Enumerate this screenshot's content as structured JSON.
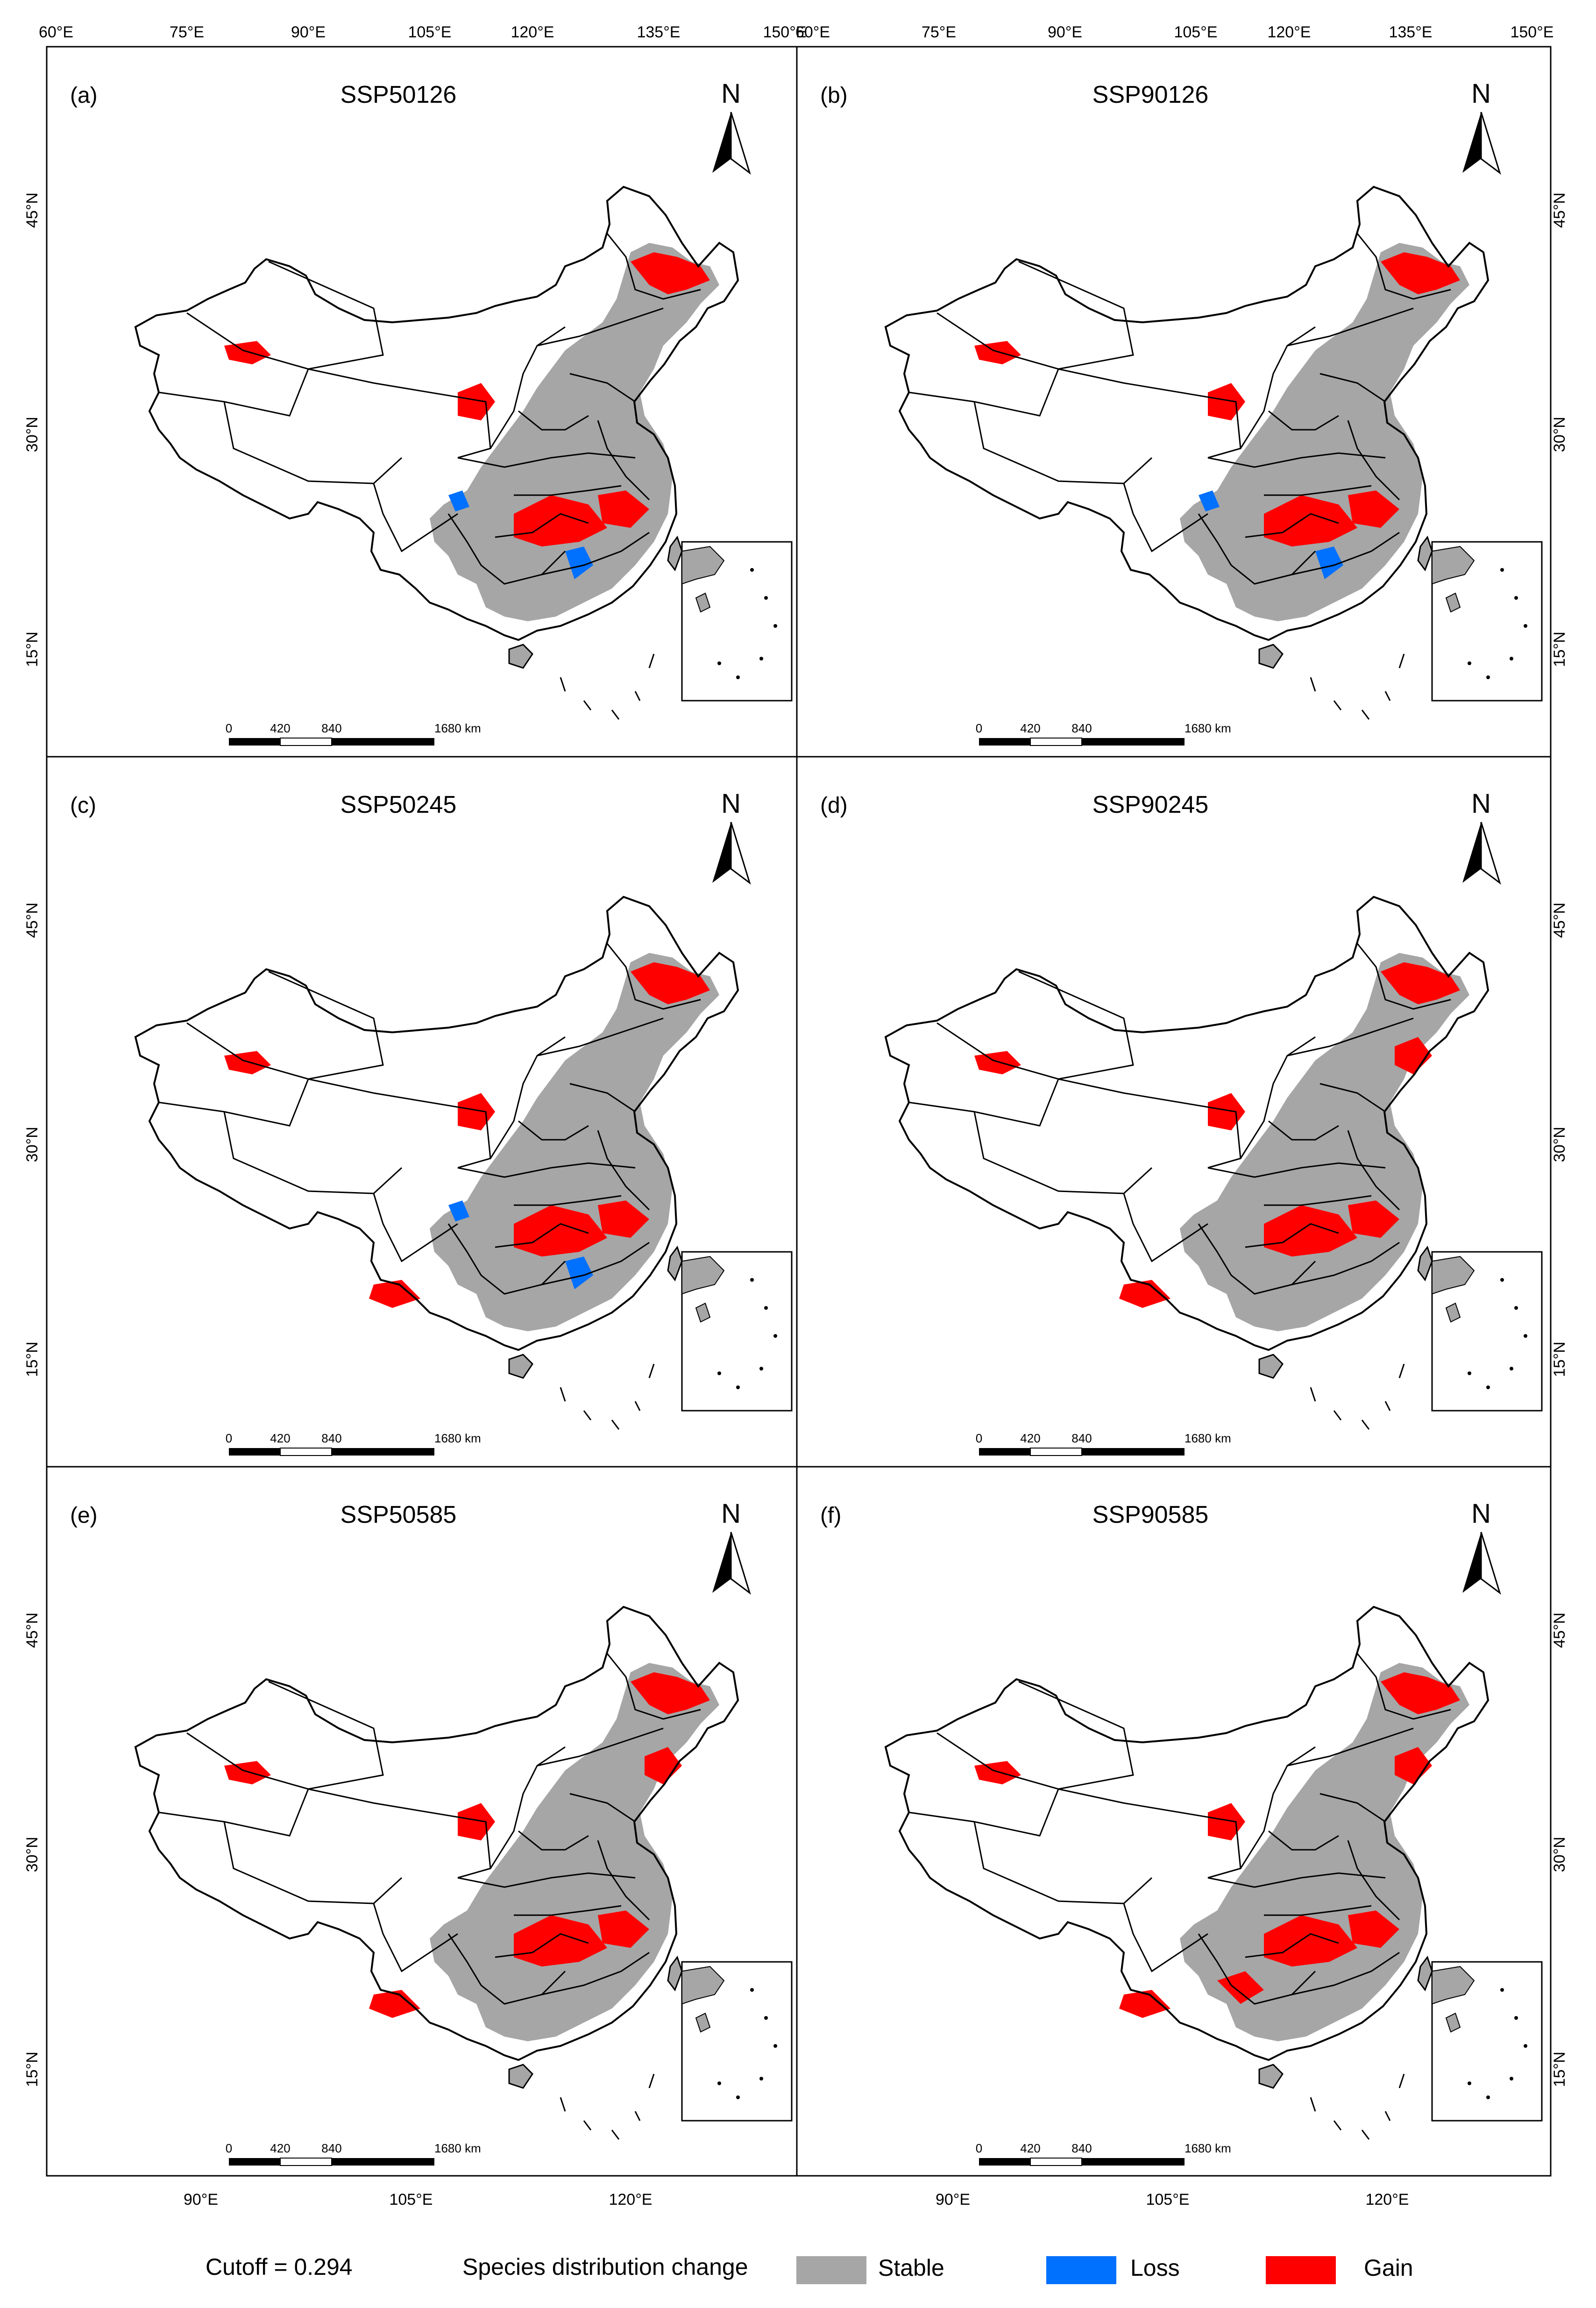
{
  "panels": [
    {
      "id": "a",
      "label": "(a)",
      "title": "SSP50126",
      "level": 1
    },
    {
      "id": "b",
      "label": "(b)",
      "title": "SSP90126",
      "level": 1
    },
    {
      "id": "c",
      "label": "(c)",
      "title": "SSP50245",
      "level": 2
    },
    {
      "id": "d",
      "label": "(d)",
      "title": "SSP90245",
      "level": 3
    },
    {
      "id": "e",
      "label": "(e)",
      "title": "SSP50585",
      "level": 3
    },
    {
      "id": "f",
      "label": "(f)",
      "title": "SSP90585",
      "level": 4
    }
  ],
  "axes": {
    "top_left": [
      "60°E",
      "75°E",
      "90°E",
      "105°E",
      "120°E",
      "135°E",
      "150°E"
    ],
    "top_right": [
      "60°E",
      "75°E",
      "90°E",
      "105°E",
      "120°E",
      "135°E",
      "150°E"
    ],
    "bottom_left": [
      "90°E",
      "105°E",
      "120°E"
    ],
    "bottom_right": [
      "90°E",
      "105°E",
      "120°E"
    ],
    "lat": [
      "45°N",
      "30°N",
      "15°N"
    ]
  },
  "north_arrow": {
    "letter": "N"
  },
  "scale_bar": {
    "labels": [
      "0",
      "420",
      "840",
      "1680 km"
    ]
  },
  "legend": {
    "cutoff": "Cutoff = 0.294",
    "title": "Species distribution change",
    "items": [
      {
        "label": "Stable",
        "color": "#a6a6a6"
      },
      {
        "label": "Loss",
        "color": "#0070ff"
      },
      {
        "label": "Gain",
        "color": "#ff0000"
      }
    ]
  }
}
